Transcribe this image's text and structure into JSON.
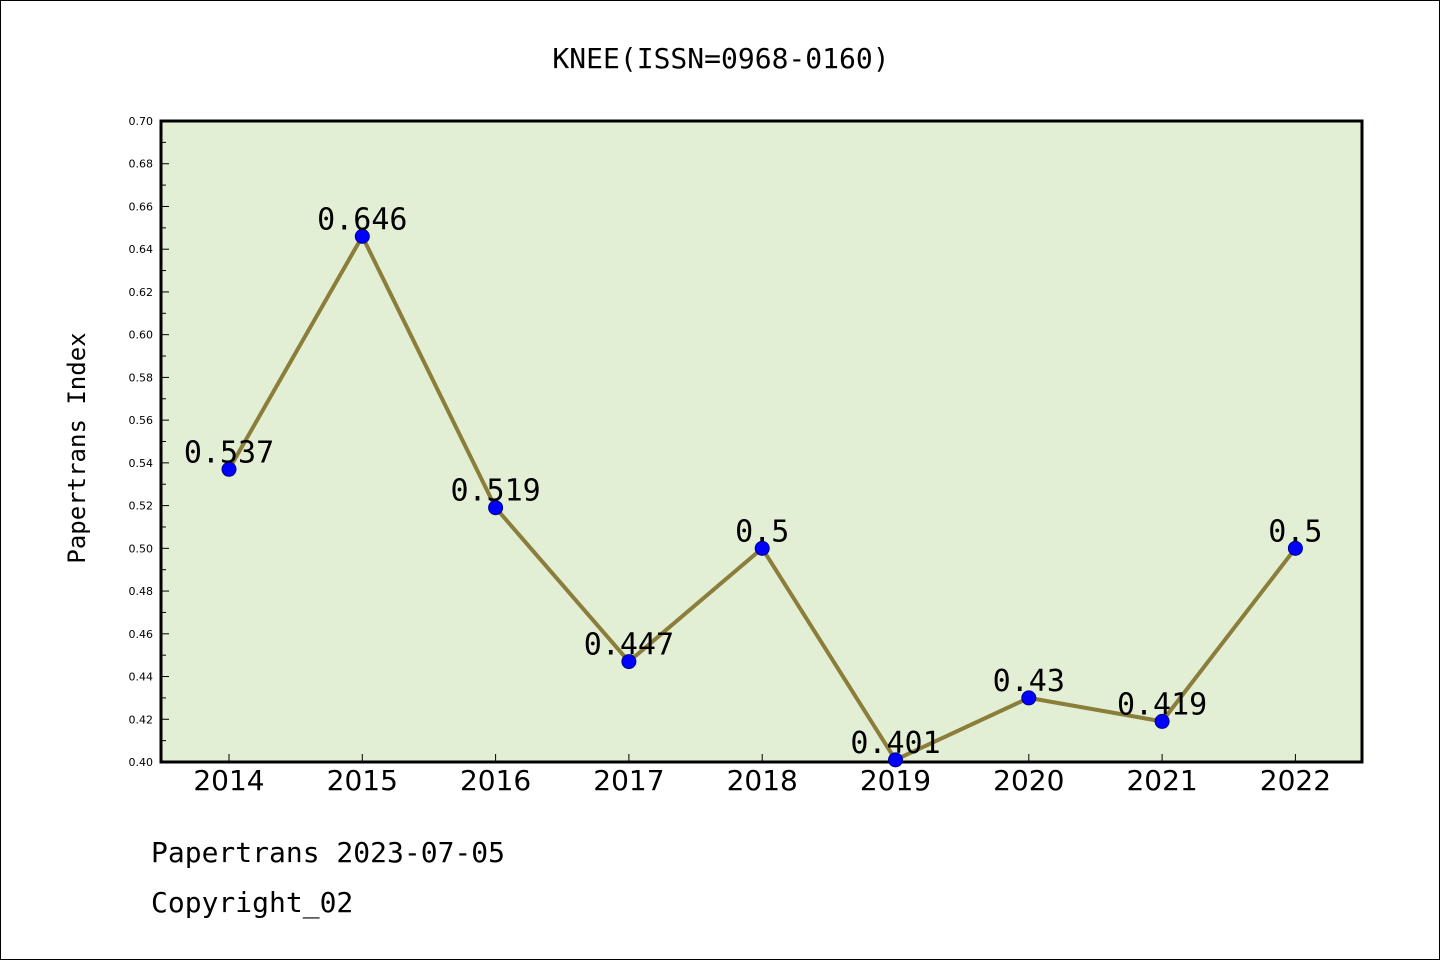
{
  "chart_data": {
    "type": "line",
    "title": "KNEE(ISSN=0968-0160)",
    "ylabel": "Papertrans Index",
    "xlabel": "",
    "categories": [
      "2014",
      "2015",
      "2016",
      "2017",
      "2018",
      "2019",
      "2020",
      "2021",
      "2022"
    ],
    "series": [
      {
        "values": [
          0.537,
          0.646,
          0.519,
          0.447,
          0.5,
          0.401,
          0.43,
          0.419,
          0.5
        ],
        "value_labels": [
          "0.537",
          "0.646",
          "0.519",
          "0.447",
          "0.5",
          "0.401",
          "0.43",
          "0.419",
          "0.5"
        ]
      }
    ],
    "ylim": [
      0.4,
      0.7
    ],
    "yticks": [
      "0.40",
      "0.42",
      "0.44",
      "0.46",
      "0.48",
      "0.50",
      "0.52",
      "0.54",
      "0.56",
      "0.58",
      "0.60",
      "0.62",
      "0.64",
      "0.66",
      "0.68",
      "0.70"
    ],
    "grid": false,
    "legend": "none",
    "colors": {
      "plot_background": "#e2efd5",
      "line": "#8b7d3a",
      "marker_fill": "#0000ff",
      "marker_edge": "#00008b",
      "axis": "#000000"
    }
  },
  "footer": {
    "line1": "Papertrans 2023-07-05",
    "line2": "Copyright_02"
  }
}
